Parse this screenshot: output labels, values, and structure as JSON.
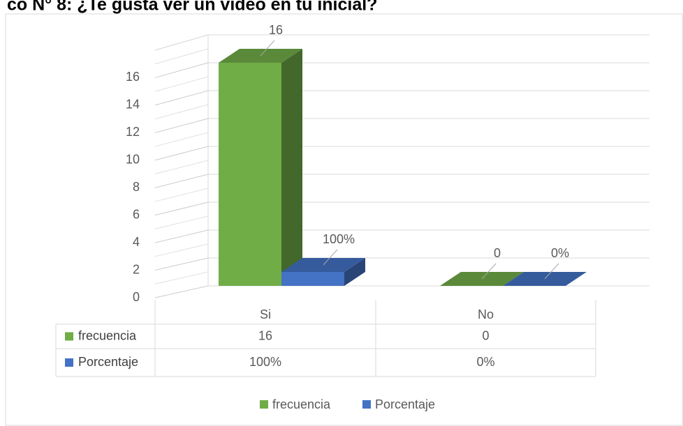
{
  "chart_data": {
    "type": "bar3d",
    "title": "co N° 8: ¿Te gusta ver un video en tu inicial?",
    "categories": [
      "Si",
      "No"
    ],
    "series": [
      {
        "name": "frecuencia",
        "color": "#70ad47",
        "values": [
          16,
          0
        ],
        "value_labels": [
          "16",
          "0"
        ]
      },
      {
        "name": "Porcentaje",
        "color": "#4472c4",
        "values": [
          1,
          0
        ],
        "value_labels": [
          "100%",
          "0%"
        ]
      }
    ],
    "ylim": [
      0,
      18
    ],
    "yticks": [
      0,
      2,
      4,
      6,
      8,
      10,
      12,
      14,
      16
    ],
    "grid": true,
    "legend": "bottom",
    "data_table": true
  }
}
